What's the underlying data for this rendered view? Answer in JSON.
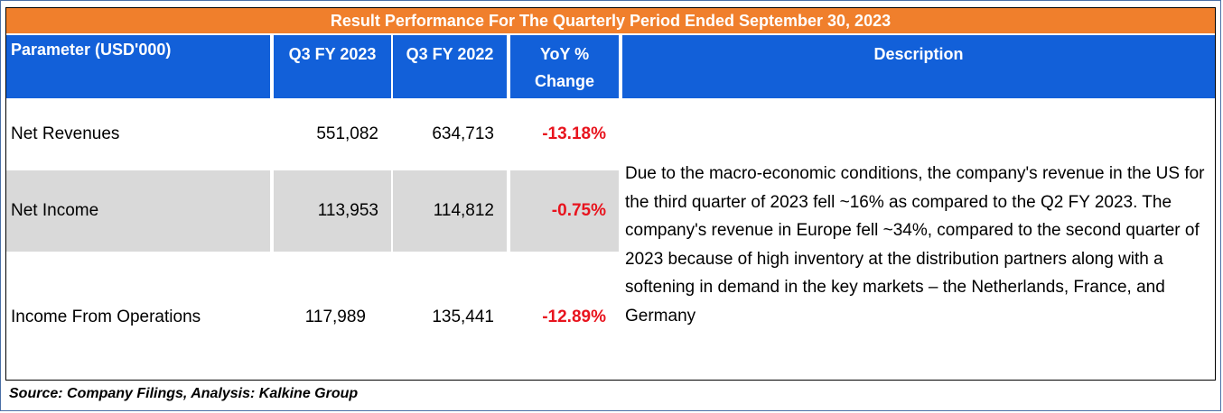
{
  "title": "Result Performance For The Quarterly Period Ended September 30, 2023",
  "headers": {
    "parameter": "Parameter  (USD'000)",
    "q3_2023": "Q3 FY 2023",
    "q3_2022": "Q3 FY 2022",
    "yoy_line1": "YoY %",
    "yoy_line2": "Change",
    "description": "Description"
  },
  "rows": [
    {
      "parameter": "Net Revenues",
      "q3_2023": "551,082",
      "q3_2022": "634,713",
      "yoy": "-13.18%"
    },
    {
      "parameter": "Net Income",
      "q3_2023": "113,953",
      "q3_2022": "114,812",
      "yoy": "-0.75%"
    },
    {
      "parameter": "Income From Operations",
      "q3_2023": "117,989",
      "q3_2022": "135,441",
      "yoy": "-12.89%"
    }
  ],
  "description": "Due to the macro-economic conditions, the company's revenue in the US for the third quarter of 2023 fell ~16% as compared to the Q2 FY 2023. The company's revenue in Europe fell ~34%, compared to the second quarter of 2023 because of high inventory at the distribution partners along with a softening in demand in the key markets – the Netherlands, France, and Germany",
  "source": "Source: Company Filings, Analysis: Kalkine Group",
  "colors": {
    "title_bar": "#f07f2c",
    "header": "#1260d9",
    "row_shade": "#d9d9d9",
    "negative": "#e8141e"
  }
}
